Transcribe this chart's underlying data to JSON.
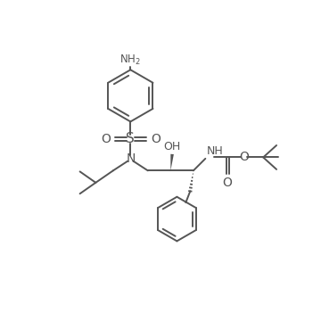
{
  "background_color": "#ffffff",
  "line_color": "#555555",
  "line_width": 1.4,
  "figsize": [
    3.6,
    3.6
  ],
  "dpi": 100,
  "xlim": [
    0,
    10
  ],
  "ylim": [
    0,
    10
  ]
}
